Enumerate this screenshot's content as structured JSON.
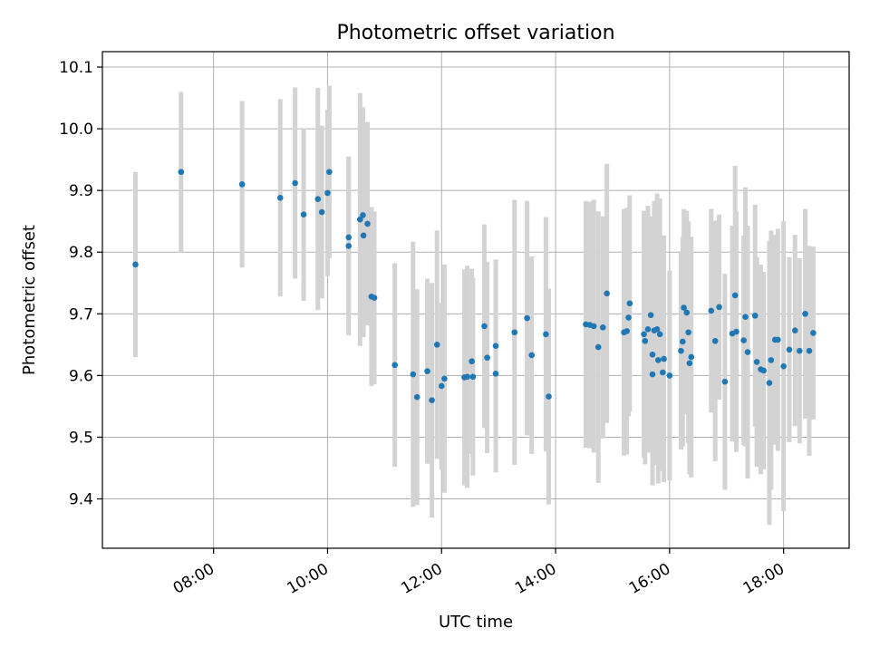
{
  "chart_data": {
    "type": "scatter",
    "title": "Photometric offset variation",
    "xlabel": "UTC time",
    "ylabel": "Photometric offset",
    "x_unit": "hours UTC",
    "xlim": [
      6.05,
      19.15
    ],
    "ylim": [
      9.32,
      10.125
    ],
    "x_ticks": [
      {
        "value": 8,
        "label": "08:00"
      },
      {
        "value": 10,
        "label": "10:00"
      },
      {
        "value": 12,
        "label": "12:00"
      },
      {
        "value": 14,
        "label": "14:00"
      },
      {
        "value": 16,
        "label": "16:00"
      },
      {
        "value": 18,
        "label": "18:00"
      }
    ],
    "y_ticks": [
      {
        "value": 9.4,
        "label": "9.4"
      },
      {
        "value": 9.5,
        "label": "9.5"
      },
      {
        "value": 9.6,
        "label": "9.6"
      },
      {
        "value": 9.7,
        "label": "9.7"
      },
      {
        "value": 9.8,
        "label": "9.8"
      },
      {
        "value": 9.9,
        "label": "9.9"
      },
      {
        "value": 10.0,
        "label": "10.0"
      },
      {
        "value": 10.1,
        "label": "10.1"
      }
    ],
    "grid": true,
    "point_color": "#1f77b4",
    "errorbar_color": "#d3d3d3",
    "points": [
      [
        6.63,
        9.78,
        0.15
      ],
      [
        7.43,
        9.93,
        0.13
      ],
      [
        8.5,
        9.91,
        0.135
      ],
      [
        9.17,
        9.888,
        0.16
      ],
      [
        9.43,
        9.912,
        0.155
      ],
      [
        9.58,
        9.861,
        0.14
      ],
      [
        9.83,
        9.886,
        0.18
      ],
      [
        9.9,
        9.865,
        0.14
      ],
      [
        10.0,
        9.896,
        0.135
      ],
      [
        10.03,
        9.93,
        0.14
      ],
      [
        10.37,
        9.824,
        0.125
      ],
      [
        10.37,
        9.81,
        0.145
      ],
      [
        10.57,
        9.853,
        0.205
      ],
      [
        10.62,
        9.86,
        0.175
      ],
      [
        10.63,
        9.827,
        0.165
      ],
      [
        10.7,
        9.846,
        0.165
      ],
      [
        10.77,
        9.728,
        0.145
      ],
      [
        10.82,
        9.726,
        0.14
      ],
      [
        11.18,
        9.617,
        0.165
      ],
      [
        11.5,
        9.602,
        0.215
      ],
      [
        11.57,
        9.565,
        0.175
      ],
      [
        11.75,
        9.607,
        0.15
      ],
      [
        11.83,
        9.56,
        0.19
      ],
      [
        11.92,
        9.65,
        0.185
      ],
      [
        12.0,
        9.583,
        0.135
      ],
      [
        12.05,
        9.595,
        0.185
      ],
      [
        12.4,
        9.597,
        0.175
      ],
      [
        12.45,
        9.598,
        0.18
      ],
      [
        12.53,
        9.623,
        0.15
      ],
      [
        12.55,
        9.598,
        0.16
      ],
      [
        12.75,
        9.68,
        0.165
      ],
      [
        12.8,
        9.629,
        0.155
      ],
      [
        12.95,
        9.648,
        0.14
      ],
      [
        12.95,
        9.603,
        0.16
      ],
      [
        13.28,
        9.67,
        0.215
      ],
      [
        13.5,
        9.693,
        0.19
      ],
      [
        13.58,
        9.633,
        0.16
      ],
      [
        13.83,
        9.667,
        0.19
      ],
      [
        13.88,
        9.566,
        0.175
      ],
      [
        14.53,
        9.683,
        0.2
      ],
      [
        14.6,
        9.682,
        0.2
      ],
      [
        14.67,
        9.68,
        0.205
      ],
      [
        14.75,
        9.646,
        0.22
      ],
      [
        14.83,
        9.678,
        0.18
      ],
      [
        14.9,
        9.733,
        0.21
      ],
      [
        15.2,
        9.67,
        0.2
      ],
      [
        15.25,
        9.672,
        0.2
      ],
      [
        15.3,
        9.717,
        0.175
      ],
      [
        15.28,
        9.694,
        0.16
      ],
      [
        15.55,
        9.667,
        0.2
      ],
      [
        15.57,
        9.656,
        0.2
      ],
      [
        15.62,
        9.675,
        0.2
      ],
      [
        15.67,
        9.698,
        0.16
      ],
      [
        15.7,
        9.634,
        0.2
      ],
      [
        15.73,
        9.673,
        0.21
      ],
      [
        15.78,
        9.675,
        0.22
      ],
      [
        15.8,
        9.625,
        0.2
      ],
      [
        15.83,
        9.667,
        0.22
      ],
      [
        15.9,
        9.627,
        0.2
      ],
      [
        15.7,
        9.602,
        0.18
      ],
      [
        15.88,
        9.605,
        0.16
      ],
      [
        16.0,
        9.6,
        0.17
      ],
      [
        16.2,
        9.64,
        0.16
      ],
      [
        16.23,
        9.655,
        0.17
      ],
      [
        16.25,
        9.71,
        0.16
      ],
      [
        16.3,
        9.702,
        0.165
      ],
      [
        16.33,
        9.67,
        0.18
      ],
      [
        16.35,
        9.62,
        0.18
      ],
      [
        16.38,
        9.63,
        0.195
      ],
      [
        16.73,
        9.705,
        0.165
      ],
      [
        16.8,
        9.656,
        0.195
      ],
      [
        16.87,
        9.711,
        0.15
      ],
      [
        16.97,
        9.59,
        0.175
      ],
      [
        17.1,
        9.668,
        0.175
      ],
      [
        17.15,
        9.73,
        0.21
      ],
      [
        17.17,
        9.671,
        0.195
      ],
      [
        17.3,
        9.657,
        0.17
      ],
      [
        17.33,
        9.695,
        0.21
      ],
      [
        17.37,
        9.638,
        0.205
      ],
      [
        17.5,
        9.697,
        0.18
      ],
      [
        17.53,
        9.622,
        0.17
      ],
      [
        17.6,
        9.61,
        0.17
      ],
      [
        17.65,
        9.608,
        0.16
      ],
      [
        17.75,
        9.588,
        0.23
      ],
      [
        17.78,
        9.625,
        0.21
      ],
      [
        17.85,
        9.658,
        0.17
      ],
      [
        17.9,
        9.658,
        0.18
      ],
      [
        18.0,
        9.615,
        0.235
      ],
      [
        18.1,
        9.642,
        0.15
      ],
      [
        18.2,
        9.673,
        0.155
      ],
      [
        18.28,
        9.64,
        0.15
      ],
      [
        18.38,
        9.7,
        0.17
      ],
      [
        18.45,
        9.64,
        0.17
      ],
      [
        18.52,
        9.669,
        0.14
      ]
    ]
  }
}
